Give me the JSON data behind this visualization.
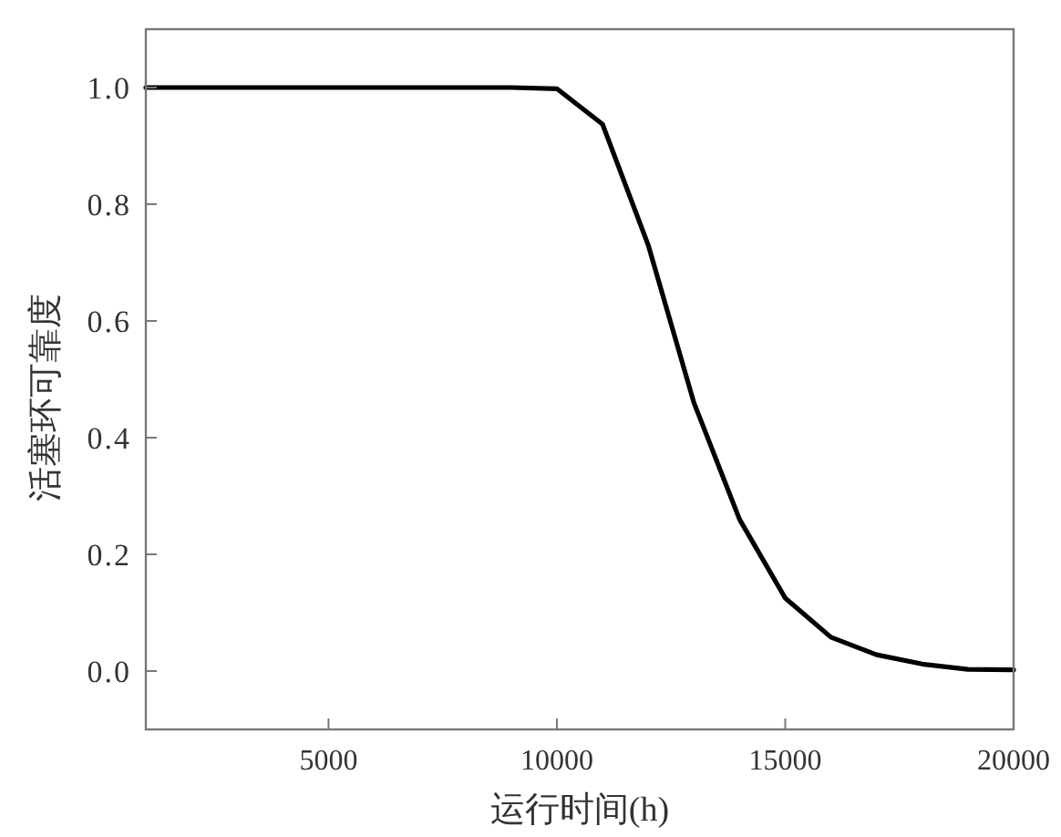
{
  "chart_data": {
    "type": "line",
    "xlabel": "运行时间(h)",
    "ylabel": "活塞环可靠度",
    "x": [
      1000,
      9000,
      10000,
      11000,
      12000,
      13000,
      14000,
      15000,
      16000,
      17000,
      18000,
      19000,
      20000
    ],
    "series": [
      {
        "color": "#000000",
        "values": [
          1.0,
          1.0,
          0.998,
          0.937,
          0.73,
          0.46,
          0.26,
          0.125,
          0.058,
          0.028,
          0.012,
          0.003,
          0.002
        ]
      }
    ],
    "xlim": [
      1000,
      20000
    ],
    "ylim": [
      -0.1,
      1.1
    ],
    "xticks": [
      5000,
      10000,
      15000,
      20000
    ],
    "yticks": [
      {
        "value": 0,
        "label": "0.0"
      },
      {
        "value": 0.2,
        "label": "0.2"
      },
      {
        "value": 0.4,
        "label": "0.4"
      },
      {
        "value": 0.6,
        "label": "0.6"
      },
      {
        "value": 0.8,
        "label": "0.8"
      },
      {
        "value": 1,
        "label": "1.0"
      }
    ],
    "grid": false,
    "marker": "none",
    "line_style": "solid"
  }
}
